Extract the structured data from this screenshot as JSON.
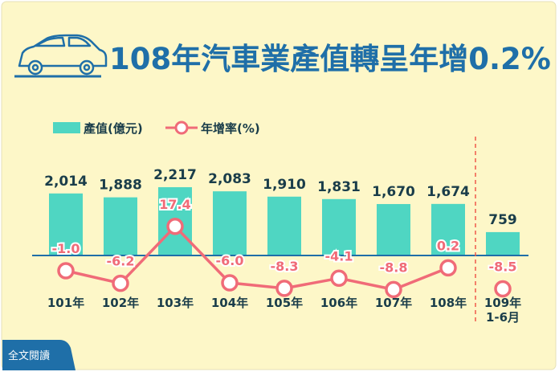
{
  "title": "108年汽車業產值轉呈年增0.2%",
  "full_text_button": "全文閱讀",
  "icons": {
    "title_icon": "car-icon"
  },
  "colors": {
    "background": "#fdf7c8",
    "title": "#1f6fa8",
    "bar": "#4fd6c2",
    "line": "#f06b78",
    "axis": "#1f6fa8",
    "value_text": "#1a3d4a",
    "divider": "#f05a4a",
    "button": "#1f6fa8"
  },
  "chart_data": {
    "type": "bar",
    "categories": [
      "101年",
      "102年",
      "103年",
      "104年",
      "105年",
      "106年",
      "107年",
      "108年",
      "109年\n1-6月"
    ],
    "series": [
      {
        "name": "產值(億元)",
        "type": "bar",
        "values": [
          2014,
          1888,
          2217,
          2083,
          1910,
          1831,
          1670,
          1674,
          759
        ],
        "labels": [
          "2,014",
          "1,888",
          "2,217",
          "2,083",
          "1,910",
          "1,831",
          "1,670",
          "1,674",
          "759"
        ]
      },
      {
        "name": "年增率(%)",
        "type": "line",
        "values": [
          -1.0,
          -6.2,
          17.4,
          -6.0,
          -8.3,
          -4.1,
          -8.8,
          0.2,
          -8.5
        ],
        "labels": [
          "-1.0",
          "-6.2",
          "17.4",
          "-6.0",
          "-8.3",
          "-4.1",
          "-8.8",
          "0.2",
          "-8.5"
        ]
      }
    ],
    "legend_position": "top-left",
    "grid": false,
    "note": "dashed divider separates 109年1-6月 from full-year data"
  }
}
